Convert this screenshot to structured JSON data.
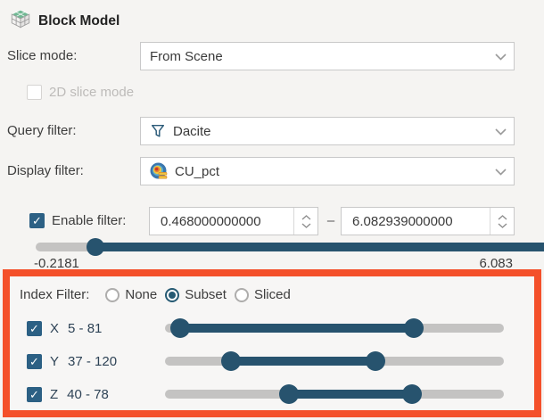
{
  "panel": {
    "title": "Block Model"
  },
  "slice_mode": {
    "label": "Slice mode:",
    "value": "From Scene"
  },
  "slice_2d": {
    "label": "2D slice mode",
    "checked": false
  },
  "query_filter": {
    "label": "Query filter:",
    "value": "Dacite",
    "icon": "funnel-icon"
  },
  "display_filter": {
    "label": "Display filter:",
    "value": "CU_pct",
    "icon": "colormap-icon"
  },
  "enable_filter": {
    "label": "Enable filter:",
    "checked": true,
    "min_value": "0.468000000000",
    "max_value": "6.082939000000",
    "separator": "–",
    "slider": {
      "lower_pct": 11,
      "upper_pct": 98.5,
      "range_min_label": "-0.2181",
      "range_max_label": "6.083"
    }
  },
  "index_filter": {
    "label": "Index Filter:",
    "highlight_color": "#f4502a",
    "options": [
      {
        "label": "None",
        "selected": false
      },
      {
        "label": "Subset",
        "selected": true
      },
      {
        "label": "Sliced",
        "selected": false
      }
    ],
    "rows": [
      {
        "axis": "X",
        "range": "5 - 81",
        "checked": true,
        "lower_pct": 4.5,
        "upper_pct": 73.5
      },
      {
        "axis": "Y",
        "range": "37 - 120",
        "checked": true,
        "lower_pct": 19.5,
        "upper_pct": 62
      },
      {
        "axis": "Z",
        "range": "40 - 78",
        "checked": true,
        "lower_pct": 36.5,
        "upper_pct": 73
      }
    ]
  },
  "colors": {
    "accent_teal": "#27536e",
    "checkbox_blue": "#2c6084",
    "highlight_orange": "#f4502a"
  }
}
